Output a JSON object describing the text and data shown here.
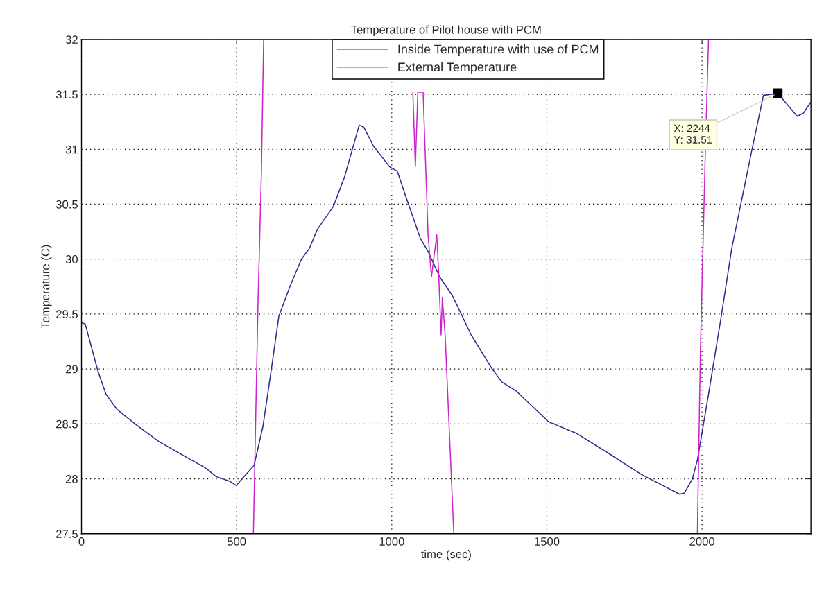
{
  "chart_data": {
    "type": "line",
    "title": "Temperature of Pilot house with PCM",
    "xlabel": "time (sec)",
    "ylabel": "Temperature (C)",
    "xlim": [
      0,
      2351
    ],
    "xticks": [
      0,
      500,
      1000,
      1500,
      2000
    ],
    "ylim": [
      27.5,
      32
    ],
    "yticks": [
      27.5,
      28,
      28.5,
      29,
      29.5,
      30,
      30.5,
      31,
      31.5,
      32
    ],
    "grid": true,
    "legend": "top",
    "line_style": "solid",
    "marker": "none",
    "series": [
      {
        "name": "Inside Temperature with use of PCM",
        "color": "#2b2b8c",
        "x": [
          0,
          12,
          53,
          79,
          115,
          177,
          249,
          342,
          399,
          434,
          476,
          499,
          527,
          556,
          585,
          611,
          636,
          673,
          709,
          735,
          760,
          812,
          848,
          874,
          895,
          910,
          941,
          993,
          1018,
          1044,
          1092,
          1117,
          1154,
          1195,
          1256,
          1319,
          1355,
          1401,
          1505,
          1598,
          1711,
          1804,
          1866,
          1928,
          1943,
          1969,
          1985,
          2021,
          2062,
          2096,
          2162,
          2198,
          2244,
          2265,
          2307,
          2327,
          2351
        ],
        "values": [
          29.42,
          29.41,
          28.98,
          28.77,
          28.63,
          28.49,
          28.34,
          28.19,
          28.1,
          28.02,
          27.98,
          27.94,
          28.03,
          28.12,
          28.48,
          28.98,
          29.48,
          29.76,
          30.0,
          30.1,
          30.27,
          30.48,
          30.75,
          31.01,
          31.22,
          31.2,
          31.03,
          30.84,
          30.8,
          30.58,
          30.19,
          30.07,
          29.84,
          29.67,
          29.31,
          29.02,
          28.88,
          28.8,
          28.52,
          28.41,
          28.21,
          28.04,
          27.95,
          27.86,
          27.87,
          28.0,
          28.17,
          28.77,
          29.48,
          30.1,
          31.01,
          31.49,
          31.51,
          31.44,
          31.3,
          31.33,
          31.43
        ]
      },
      {
        "name": "External Temperature",
        "color": "#cc22cc",
        "x": [
          554,
          569,
          580,
          587,
          1060,
          1068,
          1076,
          1084,
          1101,
          1117,
          1128,
          1145,
          1151,
          1159,
          1163,
          1172,
          1200,
          1600,
          1985,
          1995,
          2010,
          2021
        ],
        "values": [
          27.5,
          29.62,
          30.81,
          32,
          null,
          31.52,
          30.84,
          31.52,
          31.52,
          30.22,
          29.84,
          30.22,
          29.88,
          29.31,
          29.65,
          29.31,
          27.5,
          null,
          27.5,
          29.19,
          30.9,
          32
        ]
      }
    ],
    "annotations": [
      {
        "text": "X: 2244\nY: 31.51",
        "x": 2244,
        "y": 31.51
      }
    ]
  }
}
